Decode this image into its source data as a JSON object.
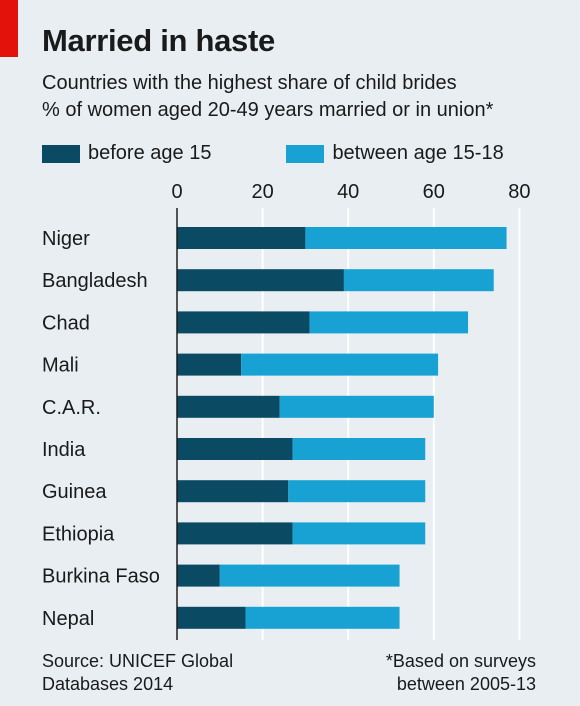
{
  "header": {
    "title": "Married in haste",
    "subtitle_line1": "Countries with the highest share of child brides",
    "subtitle_line2": "% of women aged 20-49 years married or in union*"
  },
  "legend": {
    "series1_label": "before age 15",
    "series2_label": "between age 15-18"
  },
  "footer": {
    "source_line1": "Source: UNICEF Global",
    "source_line2": "Databases 2014",
    "note_line1": "*Based on surveys",
    "note_line2": "between 2005-13"
  },
  "colors": {
    "before15": "#0b4a63",
    "between15_18": "#17a2d3",
    "background": "#e8eef2",
    "gridline": "#ffffff",
    "accent": "#e3120b"
  },
  "chart_data": {
    "type": "bar",
    "orientation": "horizontal",
    "stacked": true,
    "categories": [
      "Niger",
      "Bangladesh",
      "Chad",
      "Mali",
      "C.A.R.",
      "India",
      "Guinea",
      "Ethiopia",
      "Burkina Faso",
      "Nepal"
    ],
    "series": [
      {
        "name": "before age 15",
        "values": [
          30,
          39,
          31,
          15,
          24,
          27,
          26,
          27,
          10,
          16
        ]
      },
      {
        "name": "between age 15-18",
        "values": [
          47,
          35,
          37,
          46,
          36,
          31,
          32,
          31,
          42,
          36
        ]
      }
    ],
    "x_ticks": [
      0,
      20,
      40,
      60,
      80
    ],
    "xlim": [
      0,
      80
    ],
    "grid": true,
    "axis_position": "top"
  }
}
